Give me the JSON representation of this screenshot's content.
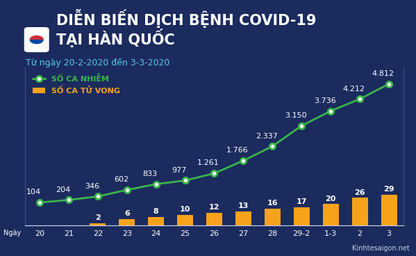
{
  "chart_data": {
    "type": "bar",
    "title": "DIỄN BIẾN DỊCH BỆNH COVID-19\nTẠI HÀN QUỐC",
    "subtitle": "Từ ngày 20-2-2020 đến 3-3-2020",
    "xlabel": "Ngày",
    "source": "Kinhtesaigon.net",
    "categories": [
      "20",
      "21",
      "22",
      "23",
      "24",
      "25",
      "26",
      "27",
      "28",
      "29-2",
      "1-3",
      "2",
      "3"
    ],
    "series": [
      {
        "name": "SỐ CA NHIỄM",
        "type": "line",
        "color": "#39b54a",
        "marker": "o",
        "line_style": "solid",
        "axis": "y2",
        "values": [
          104,
          204,
          346,
          602,
          833,
          977,
          1261,
          1766,
          2337,
          3150,
          3736,
          4212,
          4812
        ],
        "value_labels": [
          "104",
          "204",
          "346",
          "602",
          "833",
          "977",
          "1.261",
          "1.766",
          "2.337",
          "3.150",
          "3.736",
          "4.212",
          "4.812"
        ]
      },
      {
        "name": "SỐ CA TỬ VONG",
        "type": "bar",
        "color": "#f7a21b",
        "values": [
          null,
          null,
          2,
          6,
          8,
          10,
          12,
          13,
          16,
          17,
          20,
          26,
          29
        ]
      }
    ],
    "ylim": [
      0,
      150
    ],
    "yticks": [],
    "y2lim": [
      -800,
      5500
    ],
    "y2ticks": [],
    "legend": "upper left",
    "data_labels": true,
    "tick_labels": "x",
    "grid": false
  }
}
